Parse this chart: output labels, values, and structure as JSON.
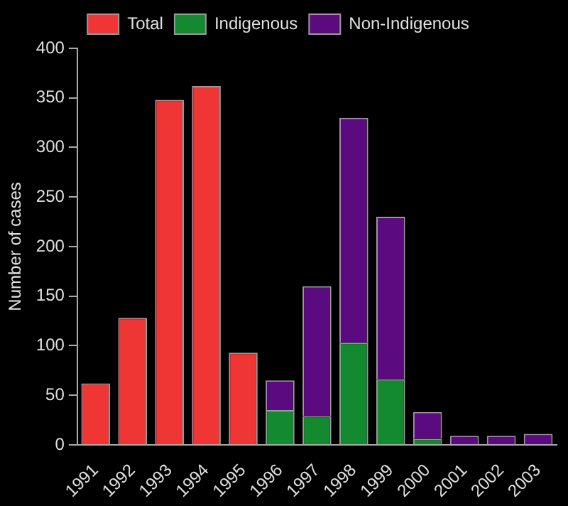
{
  "chart_data": {
    "type": "bar",
    "ylabel": "Number of cases",
    "categories": [
      "1991",
      "1992",
      "1993",
      "1994",
      "1995",
      "1996",
      "1997",
      "1998",
      "1999",
      "2000",
      "2001",
      "2002",
      "2003"
    ],
    "stacked": true,
    "series": [
      {
        "name": "Total",
        "color": "#f03535",
        "values": [
          62,
          128,
          348,
          362,
          93,
          null,
          null,
          null,
          null,
          null,
          null,
          null,
          null
        ]
      },
      {
        "name": "Indigenous",
        "color": "#138a2f",
        "values": [
          null,
          null,
          null,
          null,
          null,
          35,
          29,
          103,
          66,
          6,
          null,
          null,
          null
        ]
      },
      {
        "name": "Non-Indigenous",
        "color": "#5c0a80",
        "values": [
          null,
          null,
          null,
          null,
          null,
          30,
          131,
          227,
          164,
          27,
          9,
          9,
          11
        ]
      }
    ],
    "ylim": [
      0,
      400
    ],
    "yticks": [
      0,
      50,
      100,
      150,
      200,
      250,
      300,
      350,
      400
    ],
    "grid": false,
    "legend": "top"
  }
}
